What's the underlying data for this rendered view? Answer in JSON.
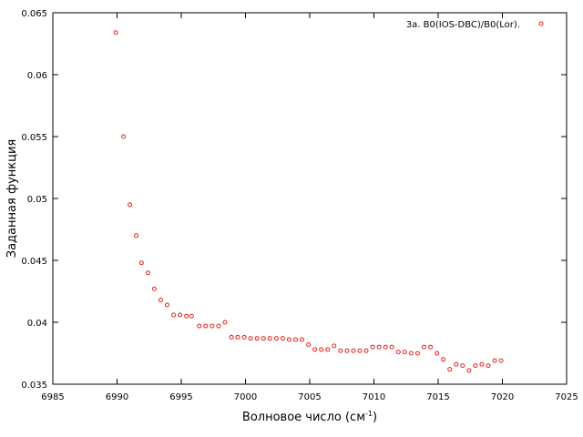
{
  "chart_data": {
    "type": "scatter",
    "xlabel": "Волновое число (см",
    "xlabel_sup": "-1",
    "xlabel_close": ")",
    "ylabel": "Заданная функция",
    "xlim": [
      6985,
      7025
    ],
    "ylim": [
      0.035,
      0.065
    ],
    "xticks": [
      6985,
      6990,
      6995,
      7000,
      7005,
      7010,
      7015,
      7020,
      7025
    ],
    "yticks": [
      0.035,
      0.04,
      0.045,
      0.05,
      0.055,
      0.06,
      0.065
    ],
    "xtick_labels": [
      "6985",
      "6990",
      "6995",
      "7000",
      "7005",
      "7010",
      "7015",
      "7020",
      "7025"
    ],
    "ytick_labels": [
      "0.035",
      "0.04",
      "0.045",
      "0.05",
      "0.055",
      "0.06",
      "0.065"
    ],
    "grid": false,
    "legend_position": "top-right",
    "marker_color": "#e8211e",
    "series": [
      {
        "name": "3a. B0(IOS-DBC)/B0(Lor).",
        "x": [
          6989.9,
          6990.5,
          6991.0,
          6991.5,
          6991.9,
          6992.4,
          6992.9,
          6993.4,
          6993.9,
          6994.4,
          6994.9,
          6995.4,
          6995.8,
          6996.4,
          6996.9,
          6997.4,
          6997.9,
          6998.4,
          6998.9,
          6999.4,
          6999.9,
          7000.4,
          7000.9,
          7001.4,
          7001.9,
          7002.4,
          7002.9,
          7003.4,
          7003.9,
          7004.4,
          7004.9,
          7005.4,
          7005.9,
          7006.4,
          7006.9,
          7007.4,
          7007.9,
          7008.4,
          7008.9,
          7009.4,
          7009.9,
          7010.4,
          7010.9,
          7011.4,
          7011.9,
          7012.4,
          7012.9,
          7013.4,
          7013.9,
          7014.4,
          7014.9,
          7015.4,
          7015.9,
          7016.4,
          7016.9,
          7017.4,
          7017.9,
          7018.4,
          7018.9,
          7019.4,
          7019.9
        ],
        "y": [
          0.0634,
          0.055,
          0.0495,
          0.047,
          0.0448,
          0.044,
          0.0427,
          0.0418,
          0.0414,
          0.0406,
          0.0406,
          0.0405,
          0.0405,
          0.0397,
          0.0397,
          0.0397,
          0.0397,
          0.04,
          0.0388,
          0.0388,
          0.0388,
          0.0387,
          0.0387,
          0.0387,
          0.0387,
          0.0387,
          0.0387,
          0.0386,
          0.0386,
          0.0386,
          0.0382,
          0.0378,
          0.0378,
          0.0378,
          0.0381,
          0.0377,
          0.0377,
          0.0377,
          0.0377,
          0.0377,
          0.038,
          0.038,
          0.038,
          0.038,
          0.0376,
          0.0376,
          0.0375,
          0.0375,
          0.038,
          0.038,
          0.0375,
          0.037,
          0.0362,
          0.0366,
          0.0365,
          0.0361,
          0.0365,
          0.0366,
          0.0365,
          0.0369,
          0.0369
        ]
      }
    ]
  }
}
